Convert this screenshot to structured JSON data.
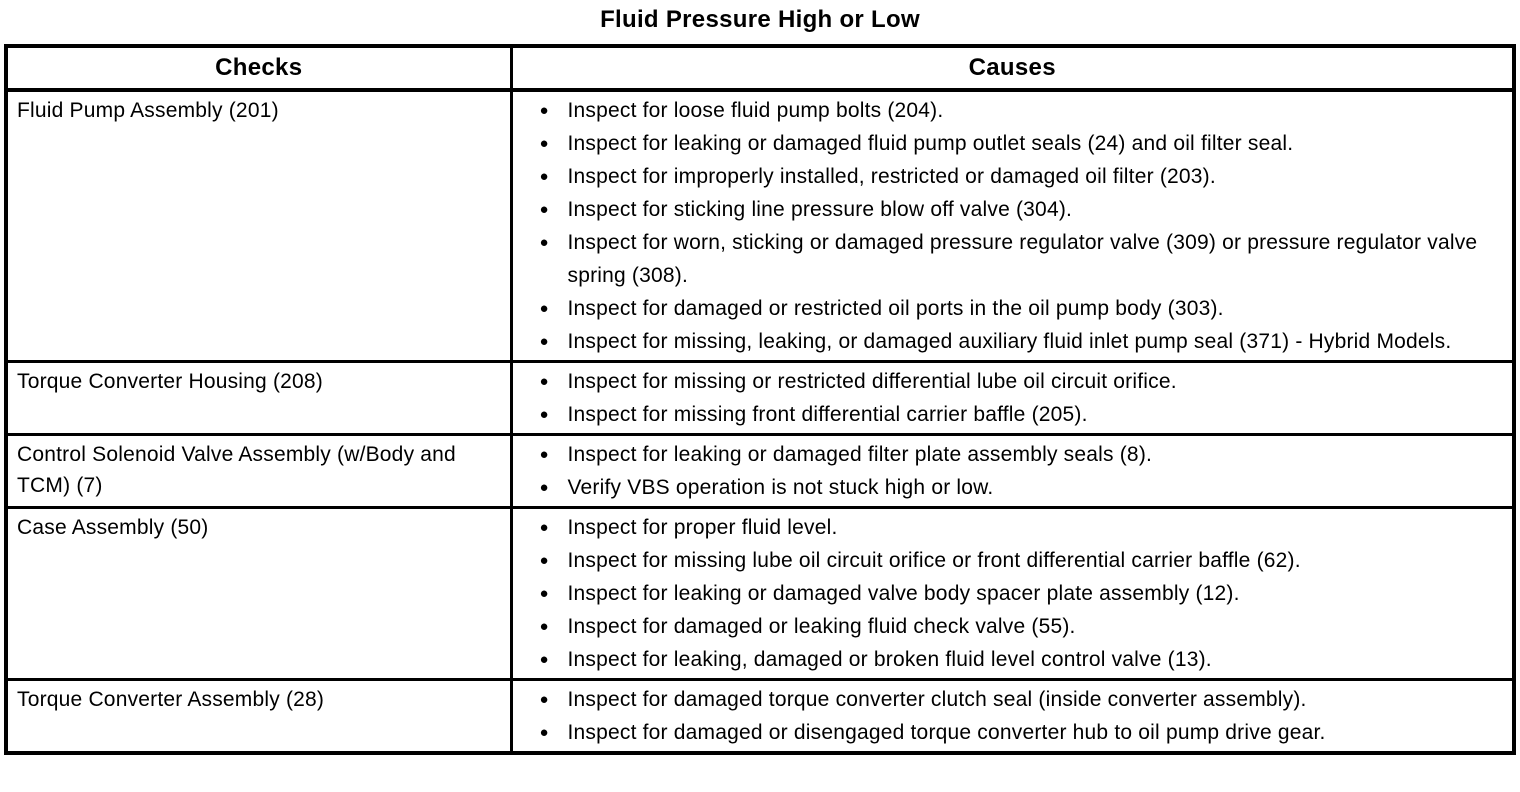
{
  "title": "Fluid Pressure High or Low",
  "icons": {
    "bullet": "●"
  },
  "table": {
    "headers": [
      "Checks",
      "Causes"
    ],
    "rows": [
      {
        "check": "Fluid Pump Assembly (201)",
        "causes": [
          "Inspect for loose fluid pump bolts (204).",
          "Inspect for leaking or damaged fluid pump outlet seals (24) and oil filter seal.",
          "Inspect for improperly installed, restricted or damaged oil filter (203).",
          "Inspect for sticking line pressure blow off valve (304).",
          "Inspect for worn, sticking or damaged pressure regulator valve (309) or pressure regulator valve spring (308).",
          "Inspect for damaged or restricted oil ports in the oil pump body (303).",
          "Inspect for missing, leaking, or damaged auxiliary fluid inlet pump seal (371) - Hybrid Models."
        ]
      },
      {
        "check": "Torque Converter Housing (208)",
        "causes": [
          "Inspect for missing or restricted differential lube oil circuit orifice.",
          "Inspect for missing front differential carrier baffle (205)."
        ]
      },
      {
        "check": "Control Solenoid Valve Assembly (w/Body and TCM) (7)",
        "causes": [
          "Inspect for leaking or damaged filter plate assembly seals (8).",
          "Verify VBS operation is not stuck high or low."
        ]
      },
      {
        "check": "Case Assembly (50)",
        "causes": [
          "Inspect for proper fluid level.",
          "Inspect for missing lube oil circuit orifice or front differential carrier baffle (62).",
          "Inspect for leaking or damaged valve body spacer plate assembly (12).",
          "Inspect for damaged or leaking fluid check valve (55).",
          "Inspect for leaking, damaged or broken fluid level control valve (13)."
        ]
      },
      {
        "check": "Torque Converter Assembly (28)",
        "causes": [
          "Inspect for damaged torque converter clutch seal (inside converter assembly).",
          "Inspect for damaged or disengaged torque converter hub to oil pump drive gear."
        ]
      }
    ]
  }
}
